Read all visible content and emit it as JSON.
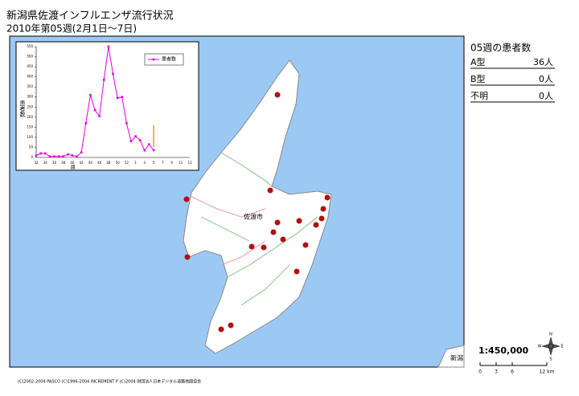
{
  "header": {
    "title": "新潟県佐渡インフルエンザ流行状況",
    "subtitle": "2010年第05週(2月1日〜7日)"
  },
  "panel": {
    "title": "05週の患者数",
    "rows": [
      {
        "label": "A型",
        "value": "36人"
      },
      {
        "label": "B型",
        "value": "0人"
      },
      {
        "label": "不明",
        "value": "0人"
      }
    ]
  },
  "map": {
    "city": "佐渡市",
    "edge_label": "新潟"
  },
  "scale": {
    "ratio": "1:450,000",
    "ticks": [
      "0",
      "3",
      "6",
      "12 km"
    ],
    "compass": [
      "N",
      "S",
      "W",
      "E"
    ]
  },
  "copyright": "(C)2002-2004 PASCO (C)1996-2004 INCREMENT P (C)2004 財団法人日本デジタル道路地図協会",
  "chart_data": {
    "type": "line",
    "y_label": "患者数",
    "x_label": "週",
    "categories": [
      "32",
      null,
      "34",
      null,
      "36",
      null,
      "38",
      null,
      "40",
      null,
      "42",
      null,
      "44",
      null,
      "46",
      null,
      "48",
      null,
      "50",
      null,
      "52",
      null,
      "1",
      null,
      "3",
      null,
      "5",
      null,
      "7",
      null,
      "9",
      null,
      "11",
      null,
      "13"
    ],
    "series": [
      {
        "name": "患者数",
        "color": "#e000e0",
        "values": [
          10,
          20,
          20,
          5,
          5,
          5,
          5,
          15,
          10,
          5,
          25,
          170,
          310,
          235,
          205,
          385,
          550,
          415,
          295,
          300,
          170,
          80,
          105,
          85,
          35,
          65,
          36,
          null,
          null,
          null,
          null,
          null,
          null,
          null,
          null
        ]
      }
    ],
    "ylim": [
      0,
      550
    ],
    "yticks": [
      0,
      50,
      100,
      150,
      200,
      250,
      300,
      350,
      400,
      450,
      500,
      550
    ]
  }
}
